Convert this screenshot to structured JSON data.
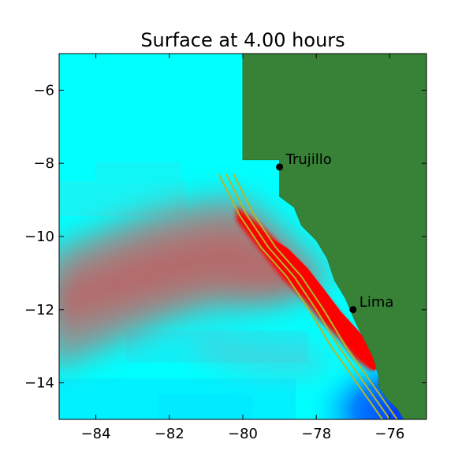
{
  "title": "Surface at 4.00 hours",
  "map": {
    "xlim": [
      -85,
      -75
    ],
    "ylim": [
      -15,
      -5
    ],
    "x_ticks": [
      -84,
      -82,
      -80,
      -78,
      -76
    ],
    "y_ticks": [
      -6,
      -8,
      -10,
      -12,
      -14
    ],
    "x_tick_labels": [
      "−84",
      "−82",
      "−80",
      "−78",
      "−76"
    ],
    "y_tick_labels": [
      "−6",
      "−8",
      "−10",
      "−12",
      "−14"
    ],
    "cities": [
      {
        "name": "Trujillo",
        "lon": -79.0,
        "lat": -8.1
      },
      {
        "name": "Lima",
        "lon": -77.0,
        "lat": -12.0
      }
    ],
    "colors": {
      "land": "#378237",
      "water": "#00ffff",
      "elevation_positive": "#ff0000",
      "elevation_negative": "#0040ff",
      "contour": "#b5b52a"
    },
    "coastline_lonlat": [
      [
        -80.0,
        -5.0
      ],
      [
        -80.0,
        -7.9
      ],
      [
        -79.0,
        -7.9
      ],
      [
        -79.0,
        -8.9
      ],
      [
        -78.6,
        -9.2
      ],
      [
        -78.4,
        -9.7
      ],
      [
        -78.0,
        -10.1
      ],
      [
        -77.7,
        -10.6
      ],
      [
        -77.5,
        -11.2
      ],
      [
        -77.2,
        -11.7
      ],
      [
        -76.95,
        -12.3
      ],
      [
        -76.7,
        -12.8
      ],
      [
        -76.45,
        -13.3
      ],
      [
        -76.3,
        -13.8
      ],
      [
        -76.3,
        -14.1
      ],
      [
        -76.1,
        -14.4
      ],
      [
        -75.8,
        -14.7
      ],
      [
        -75.6,
        -15.0
      ],
      [
        -75.0,
        -15.0
      ],
      [
        -75.0,
        -5.0
      ]
    ],
    "fault_lines_lonlat": [
      [
        [
          -80.65,
          -8.3
        ],
        [
          -80.1,
          -9.4
        ],
        [
          -79.5,
          -10.3
        ],
        [
          -78.8,
          -11.1
        ],
        [
          -78.2,
          -12.0
        ],
        [
          -77.6,
          -13.0
        ],
        [
          -76.9,
          -14.0
        ],
        [
          -76.2,
          -15.0
        ]
      ],
      [
        [
          -80.45,
          -8.3
        ],
        [
          -79.9,
          -9.4
        ],
        [
          -79.3,
          -10.3
        ],
        [
          -78.6,
          -11.1
        ],
        [
          -78.0,
          -12.0
        ],
        [
          -77.4,
          -13.0
        ],
        [
          -76.7,
          -14.0
        ],
        [
          -76.0,
          -15.0
        ]
      ],
      [
        [
          -80.25,
          -8.3
        ],
        [
          -79.7,
          -9.4
        ],
        [
          -79.1,
          -10.3
        ],
        [
          -78.4,
          -11.1
        ],
        [
          -77.8,
          -12.0
        ],
        [
          -77.2,
          -13.0
        ],
        [
          -76.5,
          -14.0
        ],
        [
          -75.8,
          -15.0
        ]
      ]
    ]
  }
}
